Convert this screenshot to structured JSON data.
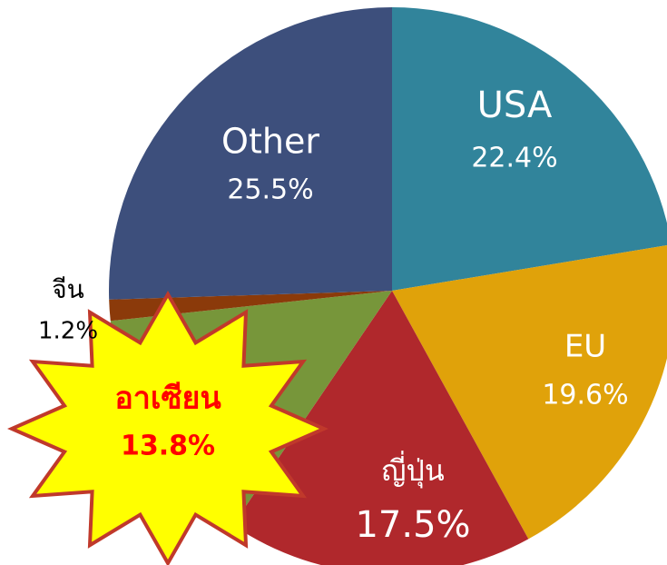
{
  "chart_data": {
    "type": "pie",
    "categories": [
      "USA",
      "EU",
      "ญี่ปุ่น",
      "อาเซียน",
      "จีน",
      "Other"
    ],
    "values": [
      22.4,
      19.6,
      17.5,
      13.8,
      1.2,
      25.5
    ],
    "value_labels": [
      "22.4%",
      "19.6%",
      "17.5%",
      "13.8%",
      "1.2%",
      "25.5%"
    ],
    "colors": [
      "#31849b",
      "#e0a20a",
      "#b0282c",
      "#77963a",
      "#8b3a0a",
      "#3d4f7c"
    ]
  }
}
